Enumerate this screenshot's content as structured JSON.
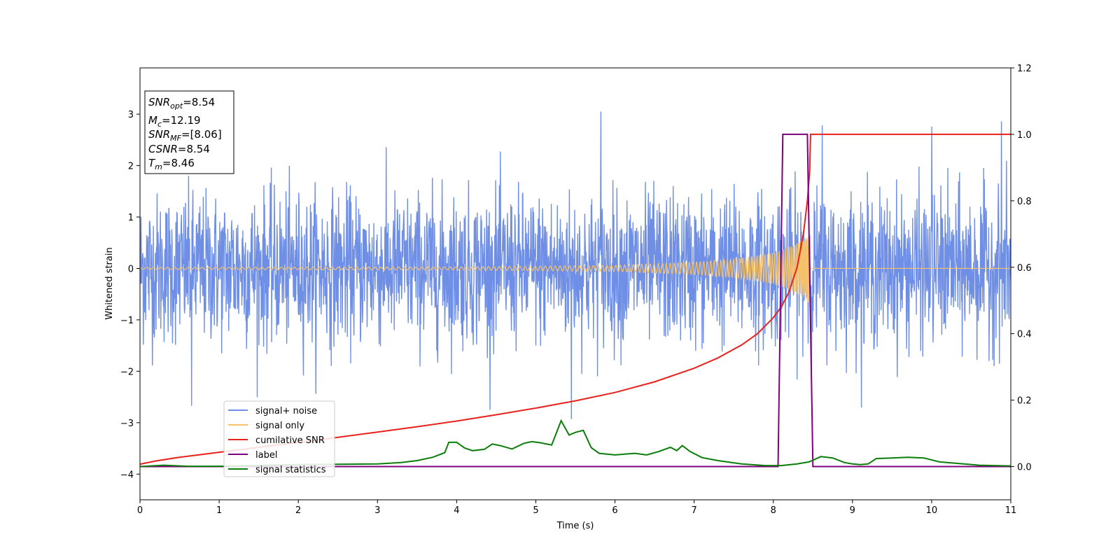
{
  "chart_data": {
    "type": "line",
    "title": "",
    "xlabel": "Time (s)",
    "ylabel": "Whitened strain",
    "xlim": [
      0,
      11
    ],
    "ylim": [
      -4.5,
      3.9
    ],
    "y2lim": [
      -0.1,
      1.2
    ],
    "x_ticks": [
      "0",
      "1",
      "2",
      "3",
      "4",
      "5",
      "6",
      "7",
      "8",
      "9",
      "10",
      "11"
    ],
    "y_ticks": [
      "3",
      "2",
      "1",
      "0",
      "−1",
      "−2",
      "−3",
      "−4"
    ],
    "y2_ticks": [
      "1.2",
      "1.0",
      "0.8",
      "0.6",
      "0.4",
      "0.2",
      "0.0"
    ],
    "legend_position": "lower-left",
    "info_box": {
      "snr_opt_var": "SNR",
      "snr_opt_sub": "opt",
      "snr_opt_value": "=8.54",
      "mc_var": "M",
      "mc_sub": "c",
      "mc_value": "=12.19",
      "snr_mf_var": "SNR",
      "snr_mf_sub": "MF",
      "snr_mf_value": "=[8.06]",
      "csnr_var": "CSNR",
      "csnr_value": "=8.54",
      "tm_var": "T",
      "tm_sub": "m",
      "tm_value": "=8.46"
    },
    "series": [
      {
        "name": "signal+ noise",
        "color": "#6f8fe6",
        "axis": "left",
        "description": "whitened noise, std ~0.8, spikes up to ~3.1 and down to ~-2.9",
        "notable_peaks": [
          [
            5.82,
            3.05
          ],
          [
            8.62,
            2.78
          ],
          [
            10.0,
            2.76
          ],
          [
            10.88,
            2.86
          ],
          [
            0.65,
            -2.67
          ],
          [
            5.45,
            -2.93
          ],
          [
            10.88,
            -2.88
          ]
        ]
      },
      {
        "name": "signal only",
        "color": "#f5c26b",
        "axis": "left",
        "description": "chirp, amplitude grows toward merger at ~8.46 s",
        "amplitude_envelope": [
          [
            0,
            0.02
          ],
          [
            4,
            0.03
          ],
          [
            6,
            0.06
          ],
          [
            7,
            0.12
          ],
          [
            7.5,
            0.18
          ],
          [
            8,
            0.3
          ],
          [
            8.2,
            0.42
          ],
          [
            8.4,
            0.58
          ],
          [
            8.46,
            0.7
          ]
        ]
      },
      {
        "name": "cumilative SNR",
        "color": "#e8211b",
        "axis": "right",
        "x": [
          0,
          0.2,
          0.5,
          1,
          1.5,
          2,
          2.5,
          3,
          3.5,
          4,
          4.5,
          5,
          5.5,
          6,
          6.5,
          7,
          7.3,
          7.6,
          7.8,
          8.0,
          8.1,
          8.2,
          8.3,
          8.38,
          8.43,
          8.46,
          8.47,
          11
        ],
        "y": [
          0.007,
          0.017,
          0.028,
          0.043,
          0.058,
          0.073,
          0.088,
          0.104,
          0.12,
          0.137,
          0.156,
          0.176,
          0.198,
          0.223,
          0.255,
          0.296,
          0.327,
          0.366,
          0.4,
          0.448,
          0.48,
          0.526,
          0.6,
          0.7,
          0.8,
          0.89,
          1.0,
          1.0
        ]
      },
      {
        "name": "label",
        "color": "#7e007e",
        "axis": "right",
        "x": [
          0,
          8.06,
          8.12,
          8.43,
          8.5,
          11
        ],
        "y": [
          0,
          0,
          1,
          1,
          0,
          0
        ]
      },
      {
        "name": "signal statistics",
        "color": "#0b7d0b",
        "axis": "right",
        "x": [
          0,
          0.3,
          0.6,
          1,
          2,
          3,
          3.3,
          3.5,
          3.7,
          3.85,
          3.9,
          4.0,
          4.1,
          4.2,
          4.35,
          4.45,
          4.55,
          4.7,
          4.85,
          4.95,
          5.05,
          5.2,
          5.32,
          5.42,
          5.5,
          5.6,
          5.7,
          5.8,
          6.0,
          6.15,
          6.25,
          6.4,
          6.55,
          6.7,
          6.78,
          6.85,
          6.95,
          7.1,
          7.3,
          7.6,
          7.9,
          8.1,
          8.3,
          8.45,
          8.6,
          8.75,
          8.9,
          9.0,
          9.1,
          9.2,
          9.3,
          9.5,
          9.7,
          9.9,
          10.1,
          10.3,
          10.6,
          11
        ],
        "y": [
          0.0,
          0.004,
          0.001,
          0.001,
          0.006,
          0.008,
          0.012,
          0.018,
          0.028,
          0.042,
          0.073,
          0.073,
          0.056,
          0.048,
          0.052,
          0.068,
          0.063,
          0.053,
          0.07,
          0.075,
          0.072,
          0.065,
          0.138,
          0.095,
          0.103,
          0.109,
          0.057,
          0.04,
          0.035,
          0.038,
          0.04,
          0.035,
          0.045,
          0.058,
          0.048,
          0.063,
          0.045,
          0.027,
          0.018,
          0.008,
          0.003,
          0.003,
          0.008,
          0.014,
          0.03,
          0.026,
          0.012,
          0.008,
          0.006,
          0.008,
          0.024,
          0.026,
          0.028,
          0.026,
          0.014,
          0.01,
          0.004,
          0.002
        ]
      }
    ]
  }
}
